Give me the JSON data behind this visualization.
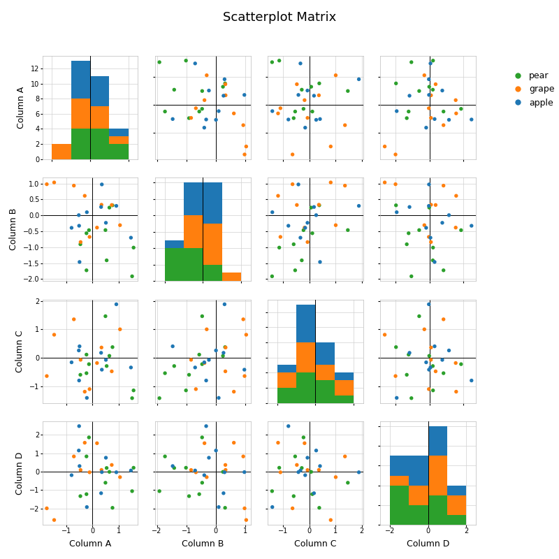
{
  "title": "Scatterplot Matrix",
  "columns": [
    "Column A",
    "Column B",
    "Column C",
    "Column D"
  ],
  "categories": [
    "pear",
    "grape",
    "apple"
  ],
  "colors": {
    "pear": "#2ca02c",
    "grape": "#ff7f0e",
    "apple": "#1f77b4"
  },
  "background_color": "#ffffff",
  "grid_color": "#d0d0d0",
  "figsize": [
    8,
    8
  ],
  "dpi": 100,
  "title_fontsize": 13,
  "label_fontsize": 9,
  "tick_fontsize": 7,
  "dot_size": 15,
  "legend_labels": [
    "pear",
    "grape",
    "apple"
  ],
  "hist_bins": 4,
  "n_per_cat": 10,
  "seed": 0
}
